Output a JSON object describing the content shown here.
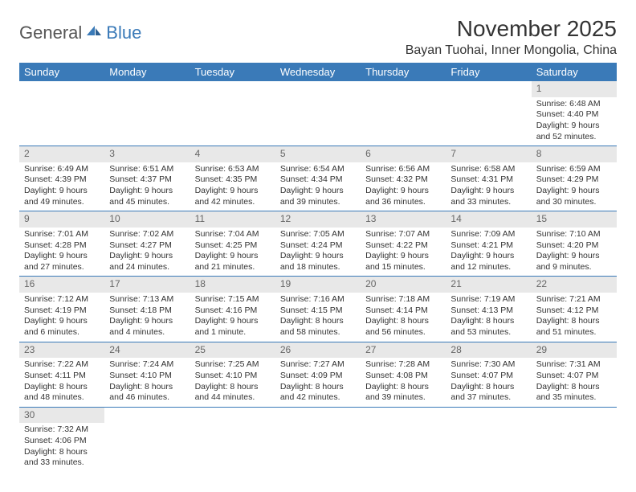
{
  "logo": {
    "word1": "General",
    "word2": "Blue"
  },
  "title": "November 2025",
  "location": "Bayan Tuohai, Inner Mongolia, China",
  "colors": {
    "accent": "#3a7ab8",
    "dayNumBg": "#e8e8e8",
    "text": "#333333"
  },
  "dayHeaders": [
    "Sunday",
    "Monday",
    "Tuesday",
    "Wednesday",
    "Thursday",
    "Friday",
    "Saturday"
  ],
  "weeks": [
    [
      {
        "blank": true
      },
      {
        "blank": true
      },
      {
        "blank": true
      },
      {
        "blank": true
      },
      {
        "blank": true
      },
      {
        "blank": true
      },
      {
        "n": "1",
        "sunrise": "Sunrise: 6:48 AM",
        "sunset": "Sunset: 4:40 PM",
        "daylight": "Daylight: 9 hours and 52 minutes."
      }
    ],
    [
      {
        "n": "2",
        "sunrise": "Sunrise: 6:49 AM",
        "sunset": "Sunset: 4:39 PM",
        "daylight": "Daylight: 9 hours and 49 minutes."
      },
      {
        "n": "3",
        "sunrise": "Sunrise: 6:51 AM",
        "sunset": "Sunset: 4:37 PM",
        "daylight": "Daylight: 9 hours and 45 minutes."
      },
      {
        "n": "4",
        "sunrise": "Sunrise: 6:53 AM",
        "sunset": "Sunset: 4:35 PM",
        "daylight": "Daylight: 9 hours and 42 minutes."
      },
      {
        "n": "5",
        "sunrise": "Sunrise: 6:54 AM",
        "sunset": "Sunset: 4:34 PM",
        "daylight": "Daylight: 9 hours and 39 minutes."
      },
      {
        "n": "6",
        "sunrise": "Sunrise: 6:56 AM",
        "sunset": "Sunset: 4:32 PM",
        "daylight": "Daylight: 9 hours and 36 minutes."
      },
      {
        "n": "7",
        "sunrise": "Sunrise: 6:58 AM",
        "sunset": "Sunset: 4:31 PM",
        "daylight": "Daylight: 9 hours and 33 minutes."
      },
      {
        "n": "8",
        "sunrise": "Sunrise: 6:59 AM",
        "sunset": "Sunset: 4:29 PM",
        "daylight": "Daylight: 9 hours and 30 minutes."
      }
    ],
    [
      {
        "n": "9",
        "sunrise": "Sunrise: 7:01 AM",
        "sunset": "Sunset: 4:28 PM",
        "daylight": "Daylight: 9 hours and 27 minutes."
      },
      {
        "n": "10",
        "sunrise": "Sunrise: 7:02 AM",
        "sunset": "Sunset: 4:27 PM",
        "daylight": "Daylight: 9 hours and 24 minutes."
      },
      {
        "n": "11",
        "sunrise": "Sunrise: 7:04 AM",
        "sunset": "Sunset: 4:25 PM",
        "daylight": "Daylight: 9 hours and 21 minutes."
      },
      {
        "n": "12",
        "sunrise": "Sunrise: 7:05 AM",
        "sunset": "Sunset: 4:24 PM",
        "daylight": "Daylight: 9 hours and 18 minutes."
      },
      {
        "n": "13",
        "sunrise": "Sunrise: 7:07 AM",
        "sunset": "Sunset: 4:22 PM",
        "daylight": "Daylight: 9 hours and 15 minutes."
      },
      {
        "n": "14",
        "sunrise": "Sunrise: 7:09 AM",
        "sunset": "Sunset: 4:21 PM",
        "daylight": "Daylight: 9 hours and 12 minutes."
      },
      {
        "n": "15",
        "sunrise": "Sunrise: 7:10 AM",
        "sunset": "Sunset: 4:20 PM",
        "daylight": "Daylight: 9 hours and 9 minutes."
      }
    ],
    [
      {
        "n": "16",
        "sunrise": "Sunrise: 7:12 AM",
        "sunset": "Sunset: 4:19 PM",
        "daylight": "Daylight: 9 hours and 6 minutes."
      },
      {
        "n": "17",
        "sunrise": "Sunrise: 7:13 AM",
        "sunset": "Sunset: 4:18 PM",
        "daylight": "Daylight: 9 hours and 4 minutes."
      },
      {
        "n": "18",
        "sunrise": "Sunrise: 7:15 AM",
        "sunset": "Sunset: 4:16 PM",
        "daylight": "Daylight: 9 hours and 1 minute."
      },
      {
        "n": "19",
        "sunrise": "Sunrise: 7:16 AM",
        "sunset": "Sunset: 4:15 PM",
        "daylight": "Daylight: 8 hours and 58 minutes."
      },
      {
        "n": "20",
        "sunrise": "Sunrise: 7:18 AM",
        "sunset": "Sunset: 4:14 PM",
        "daylight": "Daylight: 8 hours and 56 minutes."
      },
      {
        "n": "21",
        "sunrise": "Sunrise: 7:19 AM",
        "sunset": "Sunset: 4:13 PM",
        "daylight": "Daylight: 8 hours and 53 minutes."
      },
      {
        "n": "22",
        "sunrise": "Sunrise: 7:21 AM",
        "sunset": "Sunset: 4:12 PM",
        "daylight": "Daylight: 8 hours and 51 minutes."
      }
    ],
    [
      {
        "n": "23",
        "sunrise": "Sunrise: 7:22 AM",
        "sunset": "Sunset: 4:11 PM",
        "daylight": "Daylight: 8 hours and 48 minutes."
      },
      {
        "n": "24",
        "sunrise": "Sunrise: 7:24 AM",
        "sunset": "Sunset: 4:10 PM",
        "daylight": "Daylight: 8 hours and 46 minutes."
      },
      {
        "n": "25",
        "sunrise": "Sunrise: 7:25 AM",
        "sunset": "Sunset: 4:10 PM",
        "daylight": "Daylight: 8 hours and 44 minutes."
      },
      {
        "n": "26",
        "sunrise": "Sunrise: 7:27 AM",
        "sunset": "Sunset: 4:09 PM",
        "daylight": "Daylight: 8 hours and 42 minutes."
      },
      {
        "n": "27",
        "sunrise": "Sunrise: 7:28 AM",
        "sunset": "Sunset: 4:08 PM",
        "daylight": "Daylight: 8 hours and 39 minutes."
      },
      {
        "n": "28",
        "sunrise": "Sunrise: 7:30 AM",
        "sunset": "Sunset: 4:07 PM",
        "daylight": "Daylight: 8 hours and 37 minutes."
      },
      {
        "n": "29",
        "sunrise": "Sunrise: 7:31 AM",
        "sunset": "Sunset: 4:07 PM",
        "daylight": "Daylight: 8 hours and 35 minutes."
      }
    ],
    [
      {
        "n": "30",
        "sunrise": "Sunrise: 7:32 AM",
        "sunset": "Sunset: 4:06 PM",
        "daylight": "Daylight: 8 hours and 33 minutes."
      },
      {
        "blank": true
      },
      {
        "blank": true
      },
      {
        "blank": true
      },
      {
        "blank": true
      },
      {
        "blank": true
      },
      {
        "blank": true
      }
    ]
  ]
}
